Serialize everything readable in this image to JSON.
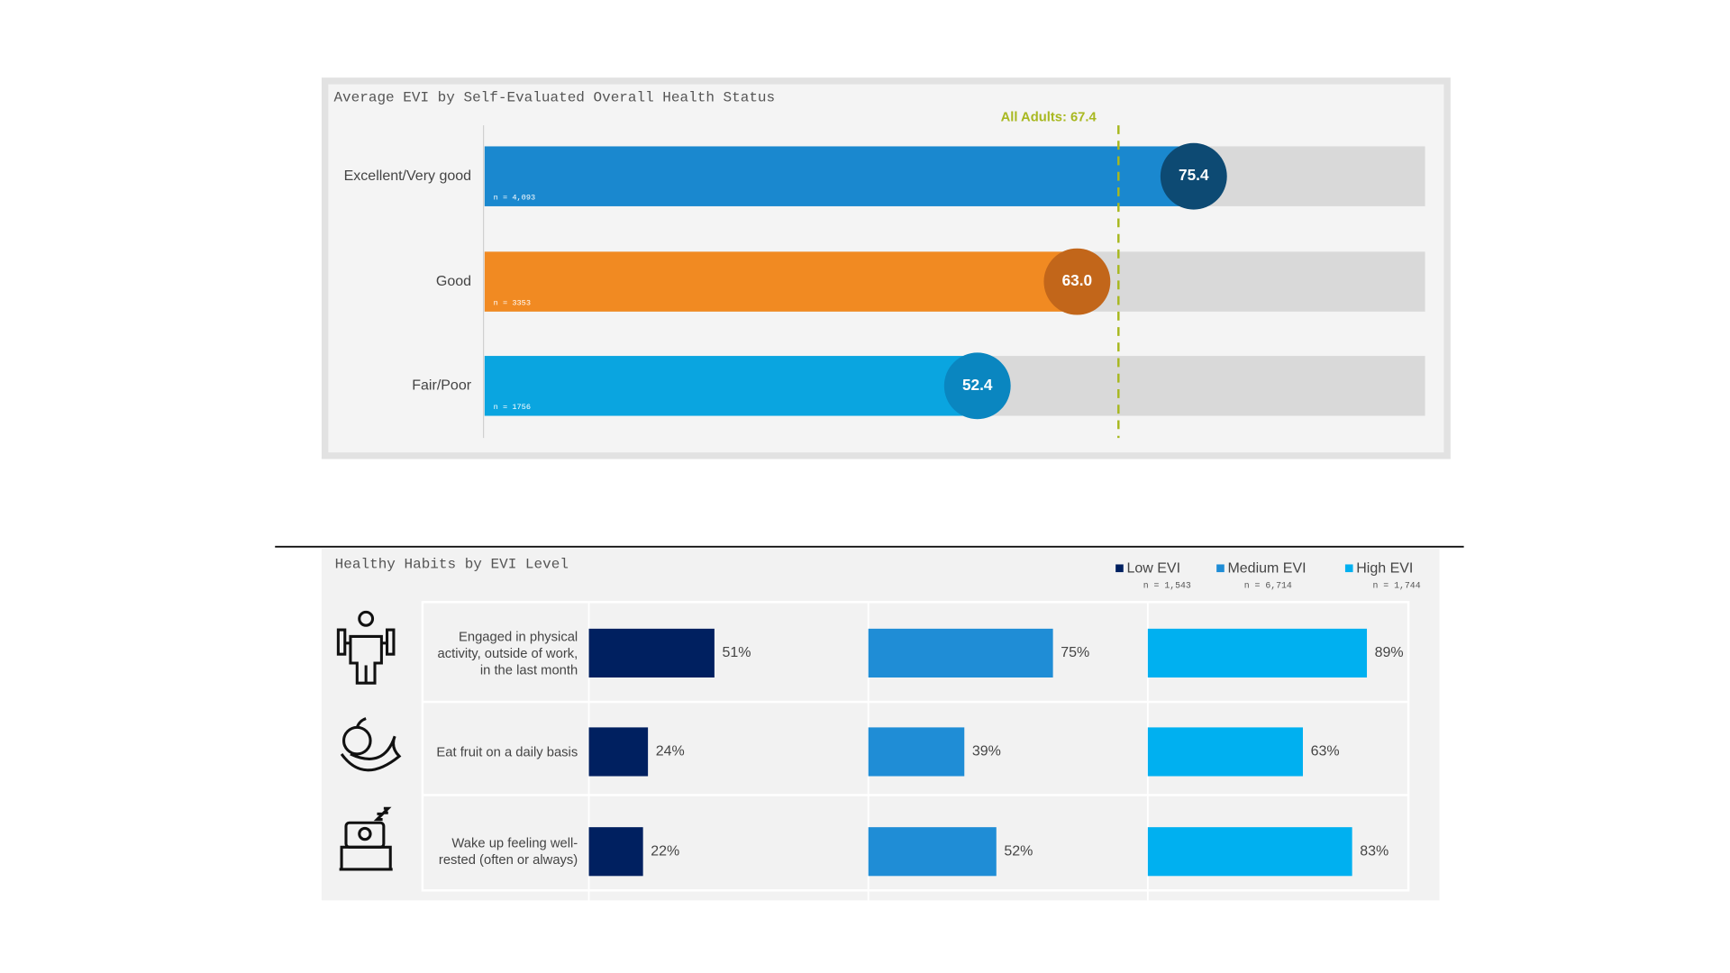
{
  "chart_data": [
    {
      "type": "bar",
      "horizontal": true,
      "title": "Average EVI by Self-Evaluated Overall Health Status",
      "categories": [
        "Excellent/Very good",
        "Good",
        "Fair/Poor"
      ],
      "values": [
        75.4,
        63.0,
        52.4
      ],
      "value_labels": [
        "75.4",
        "63.0",
        "52.4"
      ],
      "sample_sizes": [
        "n = 4,093",
        "n = 3353",
        "n = 1756"
      ],
      "colors": [
        "#1a88cf",
        "#f18a22",
        "#0aa5e0"
      ],
      "bubble_colors": [
        "#0d4a73",
        "#c2661a",
        "#0a86c0"
      ],
      "track_color": "#d9d9d9",
      "xlim": [
        0,
        100
      ],
      "reference_line": {
        "value": 67.4,
        "label": "All Adults: 67.4",
        "color": "#a8b820"
      }
    },
    {
      "type": "bar",
      "horizontal": true,
      "panels": true,
      "title": "Healthy Habits by EVI Level",
      "categories": [
        "Engaged in physical activity, outside of work, in the last month",
        "Eat fruit on a daily basis",
        "Wake up feeling well-rested (often or always)"
      ],
      "series": [
        {
          "name": "Low EVI",
          "n": "n = 1,543",
          "color": "#002060",
          "values": [
            51,
            24,
            22
          ],
          "value_labels": [
            "51%",
            "24%",
            "22%"
          ]
        },
        {
          "name": "Medium EVI",
          "n": "n = 6,714",
          "color": "#1f8dd6",
          "values": [
            75,
            39,
            52
          ],
          "value_labels": [
            "75%",
            "39%",
            "52%"
          ]
        },
        {
          "name": "High EVI",
          "n": "n = 1,744",
          "color": "#00b0f0",
          "values": [
            89,
            63,
            83
          ],
          "value_labels": [
            "89%",
            "63%",
            "83%"
          ]
        }
      ],
      "xlim": [
        0,
        100
      ]
    }
  ]
}
